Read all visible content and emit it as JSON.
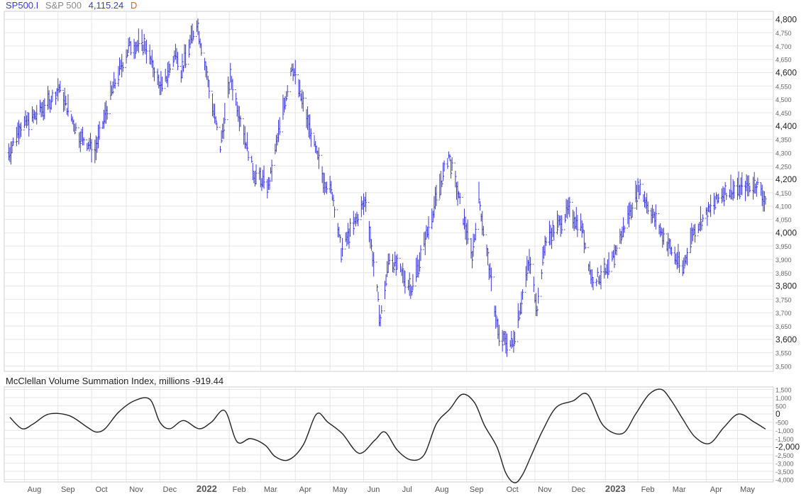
{
  "header": {
    "symbol": "SP500.I",
    "name": "S&P 500",
    "last": "4,115.24",
    "period": "D"
  },
  "subchart": {
    "title": "McClellan Volume Summation Index, millions",
    "value": "-919.44"
  },
  "colors": {
    "bars": "#3b3bd9",
    "line": "#222222",
    "grid": "#e6e6e6",
    "accent": "#e0661b"
  },
  "chart_data": [
    {
      "type": "ohlc",
      "series": [
        {
          "name": "S&P 500",
          "values_note": "daily price bars"
        }
      ],
      "x": [
        "2021-07-20",
        "2021-07-28",
        "2021-08-10",
        "2021-08-25",
        "2021-09-02",
        "2021-09-20",
        "2021-09-29",
        "2021-10-04",
        "2021-10-20",
        "2021-11-04",
        "2021-11-18",
        "2021-11-30",
        "2021-12-03",
        "2021-12-16",
        "2021-12-20",
        "2022-01-03",
        "2022-01-24",
        "2022-02-02",
        "2022-02-23",
        "2022-03-08",
        "2022-03-29",
        "2022-04-26",
        "2022-05-04",
        "2022-05-12",
        "2022-06-03",
        "2022-06-16",
        "2022-06-24",
        "2022-07-14",
        "2022-08-16",
        "2022-09-06",
        "2022-09-12",
        "2022-09-30",
        "2022-10-12",
        "2022-10-27",
        "2022-11-03",
        "2022-11-10",
        "2022-12-01",
        "2022-12-13",
        "2022-12-22",
        "2023-01-05",
        "2023-02-02",
        "2023-02-23",
        "2023-03-13",
        "2023-03-22",
        "2023-04-18",
        "2023-05-01",
        "2023-05-19",
        "2023-05-25"
      ],
      "y": [
        4300,
        4390,
        4430,
        4490,
        4540,
        4360,
        4330,
        4300,
        4540,
        4700,
        4700,
        4560,
        4540,
        4680,
        4600,
        4790,
        4320,
        4580,
        4220,
        4170,
        4630,
        4200,
        4150,
        3930,
        4120,
        3670,
        3910,
        3790,
        4290,
        3910,
        4130,
        3600,
        3580,
        3890,
        3720,
        3960,
        4080,
        4020,
        3820,
        3850,
        4170,
        3990,
        3860,
        4000,
        4150,
        4160,
        4180,
        4120
      ],
      "ylim": [
        3480,
        4830
      ],
      "yticks": [
        "3,500",
        "3,550",
        "3,600",
        "3,650",
        "3,700",
        "3,750",
        "3,800",
        "3,850",
        "3,900",
        "3,950",
        "4,000",
        "4,050",
        "4,100",
        "4,150",
        "4,200",
        "4,250",
        "4,300",
        "4,350",
        "4,400",
        "4,450",
        "4,500",
        "4,550",
        "4,600",
        "4,650",
        "4,700",
        "4,750",
        "4,800"
      ],
      "major_yticks": [
        "3,600",
        "3,800",
        "4,000",
        "4,200",
        "4,400",
        "4,600",
        "4,800"
      ]
    },
    {
      "type": "line",
      "series": [
        {
          "name": "McClellan Volume Summation Index, millions"
        }
      ],
      "x": [
        "2021-07-20",
        "2021-07-31",
        "2021-08-10",
        "2021-08-24",
        "2021-09-11",
        "2021-09-27",
        "2021-10-05",
        "2021-10-13",
        "2021-10-25",
        "2021-11-08",
        "2021-11-22",
        "2021-12-01",
        "2021-12-10",
        "2021-12-22",
        "2022-01-05",
        "2022-01-16",
        "2022-01-28",
        "2022-02-08",
        "2022-02-20",
        "2022-03-05",
        "2022-03-14",
        "2022-03-26",
        "2022-04-08",
        "2022-04-20",
        "2022-04-30",
        "2022-05-13",
        "2022-05-28",
        "2022-06-11",
        "2022-06-20",
        "2022-07-01",
        "2022-07-13",
        "2022-07-25",
        "2022-08-05",
        "2022-08-17",
        "2022-08-28",
        "2022-09-08",
        "2022-09-17",
        "2022-09-28",
        "2022-10-06",
        "2022-10-14",
        "2022-10-21",
        "2022-10-29",
        "2022-11-08",
        "2022-11-20",
        "2022-12-05",
        "2022-12-18",
        "2023-01-01",
        "2023-01-18",
        "2023-01-30",
        "2023-02-11",
        "2023-02-22",
        "2023-03-03",
        "2023-03-13",
        "2023-03-24",
        "2023-04-06",
        "2023-04-19",
        "2023-05-02",
        "2023-05-16",
        "2023-05-26"
      ],
      "y": [
        -200,
        -900,
        -600,
        0,
        -100,
        -800,
        -1100,
        -900,
        100,
        800,
        900,
        -500,
        -900,
        -400,
        -900,
        -500,
        200,
        -1700,
        -1500,
        -1900,
        -2600,
        -2800,
        -1900,
        0,
        -500,
        -1200,
        -2400,
        -1600,
        -1100,
        -2200,
        -2800,
        -2500,
        -600,
        300,
        1200,
        700,
        -700,
        -2000,
        -3600,
        -4200,
        -3700,
        -2500,
        -1000,
        400,
        800,
        1200,
        -700,
        -1200,
        0,
        1200,
        1500,
        800,
        -300,
        -1400,
        -1800,
        -800,
        0,
        -500,
        -920
      ],
      "ylim": [
        -4150,
        1650
      ],
      "yticks": [
        "-4,000",
        "-3,500",
        "-3,000",
        "-2,500",
        "-2,000",
        "-1,500",
        "-1,000",
        "-500",
        "0",
        "500",
        "1,000",
        "1,500"
      ],
      "major_yticks": [
        "-2,000",
        "0"
      ]
    }
  ],
  "x_axis": {
    "labels": [
      "Aug",
      "Sep",
      "Oct",
      "Nov",
      "Dec",
      "2022",
      "Feb",
      "Mar",
      "Apr",
      "May",
      "Jun",
      "Jul",
      "Aug",
      "Sep",
      "Oct",
      "Nov",
      "Dec",
      "2023",
      "Feb",
      "Mar",
      "Apr",
      "May"
    ],
    "dates": [
      "2021-08-02",
      "2021-09-01",
      "2021-10-01",
      "2021-11-01",
      "2021-12-01",
      "2022-01-03",
      "2022-02-01",
      "2022-03-01",
      "2022-04-01",
      "2022-05-02",
      "2022-06-01",
      "2022-07-01",
      "2022-08-01",
      "2022-09-01",
      "2022-10-03",
      "2022-11-01",
      "2022-12-01",
      "2023-01-03",
      "2023-02-01",
      "2023-03-01",
      "2023-04-03",
      "2023-05-01"
    ],
    "bold": [
      "2022",
      "2023"
    ]
  }
}
